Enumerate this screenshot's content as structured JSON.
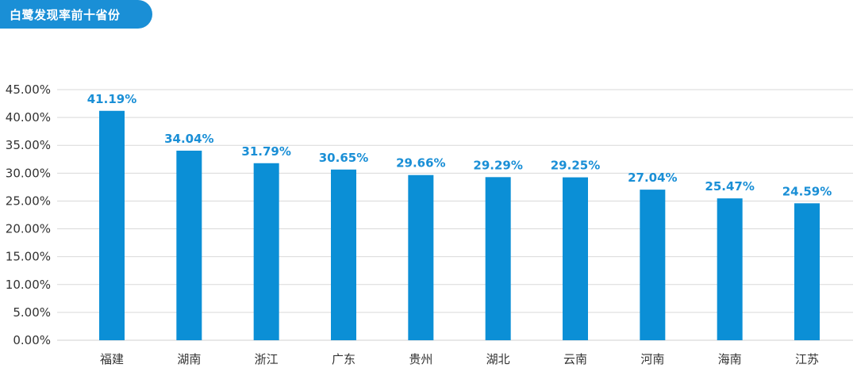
{
  "badge": {
    "text": "白鹭发现率前十省份",
    "color": "#1a8fd6"
  },
  "chart_data": {
    "type": "bar",
    "title": "白鹭发现率前十省份",
    "xlabel": "",
    "ylabel": "",
    "categories": [
      "福建",
      "湖南",
      "浙江",
      "广东",
      "贵州",
      "湖北",
      "云南",
      "河南",
      "海南",
      "江苏"
    ],
    "values": [
      41.19,
      34.04,
      31.79,
      30.65,
      29.66,
      29.29,
      29.25,
      27.04,
      25.47,
      24.59
    ],
    "value_labels": [
      "41.19%",
      "34.04%",
      "31.79%",
      "30.65%",
      "29.66%",
      "29.29%",
      "29.25%",
      "27.04%",
      "25.47%",
      "24.59%"
    ],
    "ylim": [
      0,
      45
    ],
    "yticks": [
      0,
      5,
      10,
      15,
      20,
      25,
      30,
      35,
      40,
      45
    ],
    "ytick_labels": [
      "0.00%",
      "5.00%",
      "10.00%",
      "15.00%",
      "20.00%",
      "25.00%",
      "30.00%",
      "35.00%",
      "40.00%",
      "45.00%"
    ],
    "grid": true,
    "bar_color": "#0b8fd6",
    "grid_color": "#d9d9d9",
    "label_color": "#1a8fd6"
  }
}
